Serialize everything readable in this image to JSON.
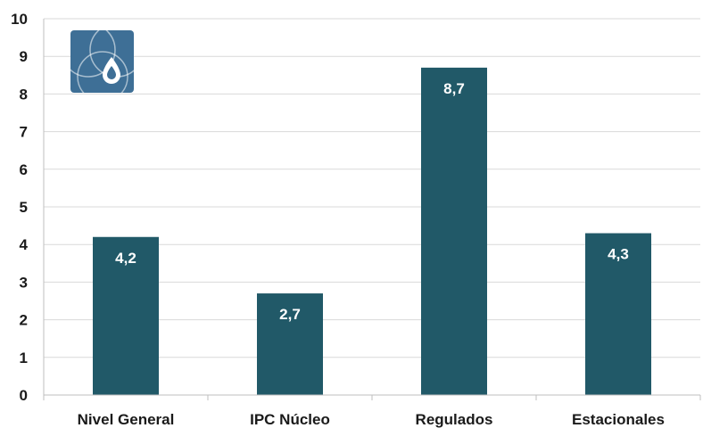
{
  "chart_data": {
    "type": "bar",
    "categories": [
      "Nivel General",
      "IPC Núcleo",
      "Regulados",
      "Estacionales"
    ],
    "values": [
      4.2,
      2.7,
      8.7,
      4.3
    ],
    "data_labels": [
      "4,2",
      "2,7",
      "8,7",
      "4,3"
    ],
    "yticks": [
      0,
      1,
      2,
      3,
      4,
      5,
      6,
      7,
      8,
      9,
      10
    ],
    "ylim": [
      0,
      10
    ],
    "grid": true,
    "legend": "none",
    "bar_color": "#215968",
    "title": "",
    "xlabel": "",
    "ylabel": ""
  },
  "logo": {
    "icon": "droplet-logo-icon",
    "color": "#3e6f96"
  }
}
